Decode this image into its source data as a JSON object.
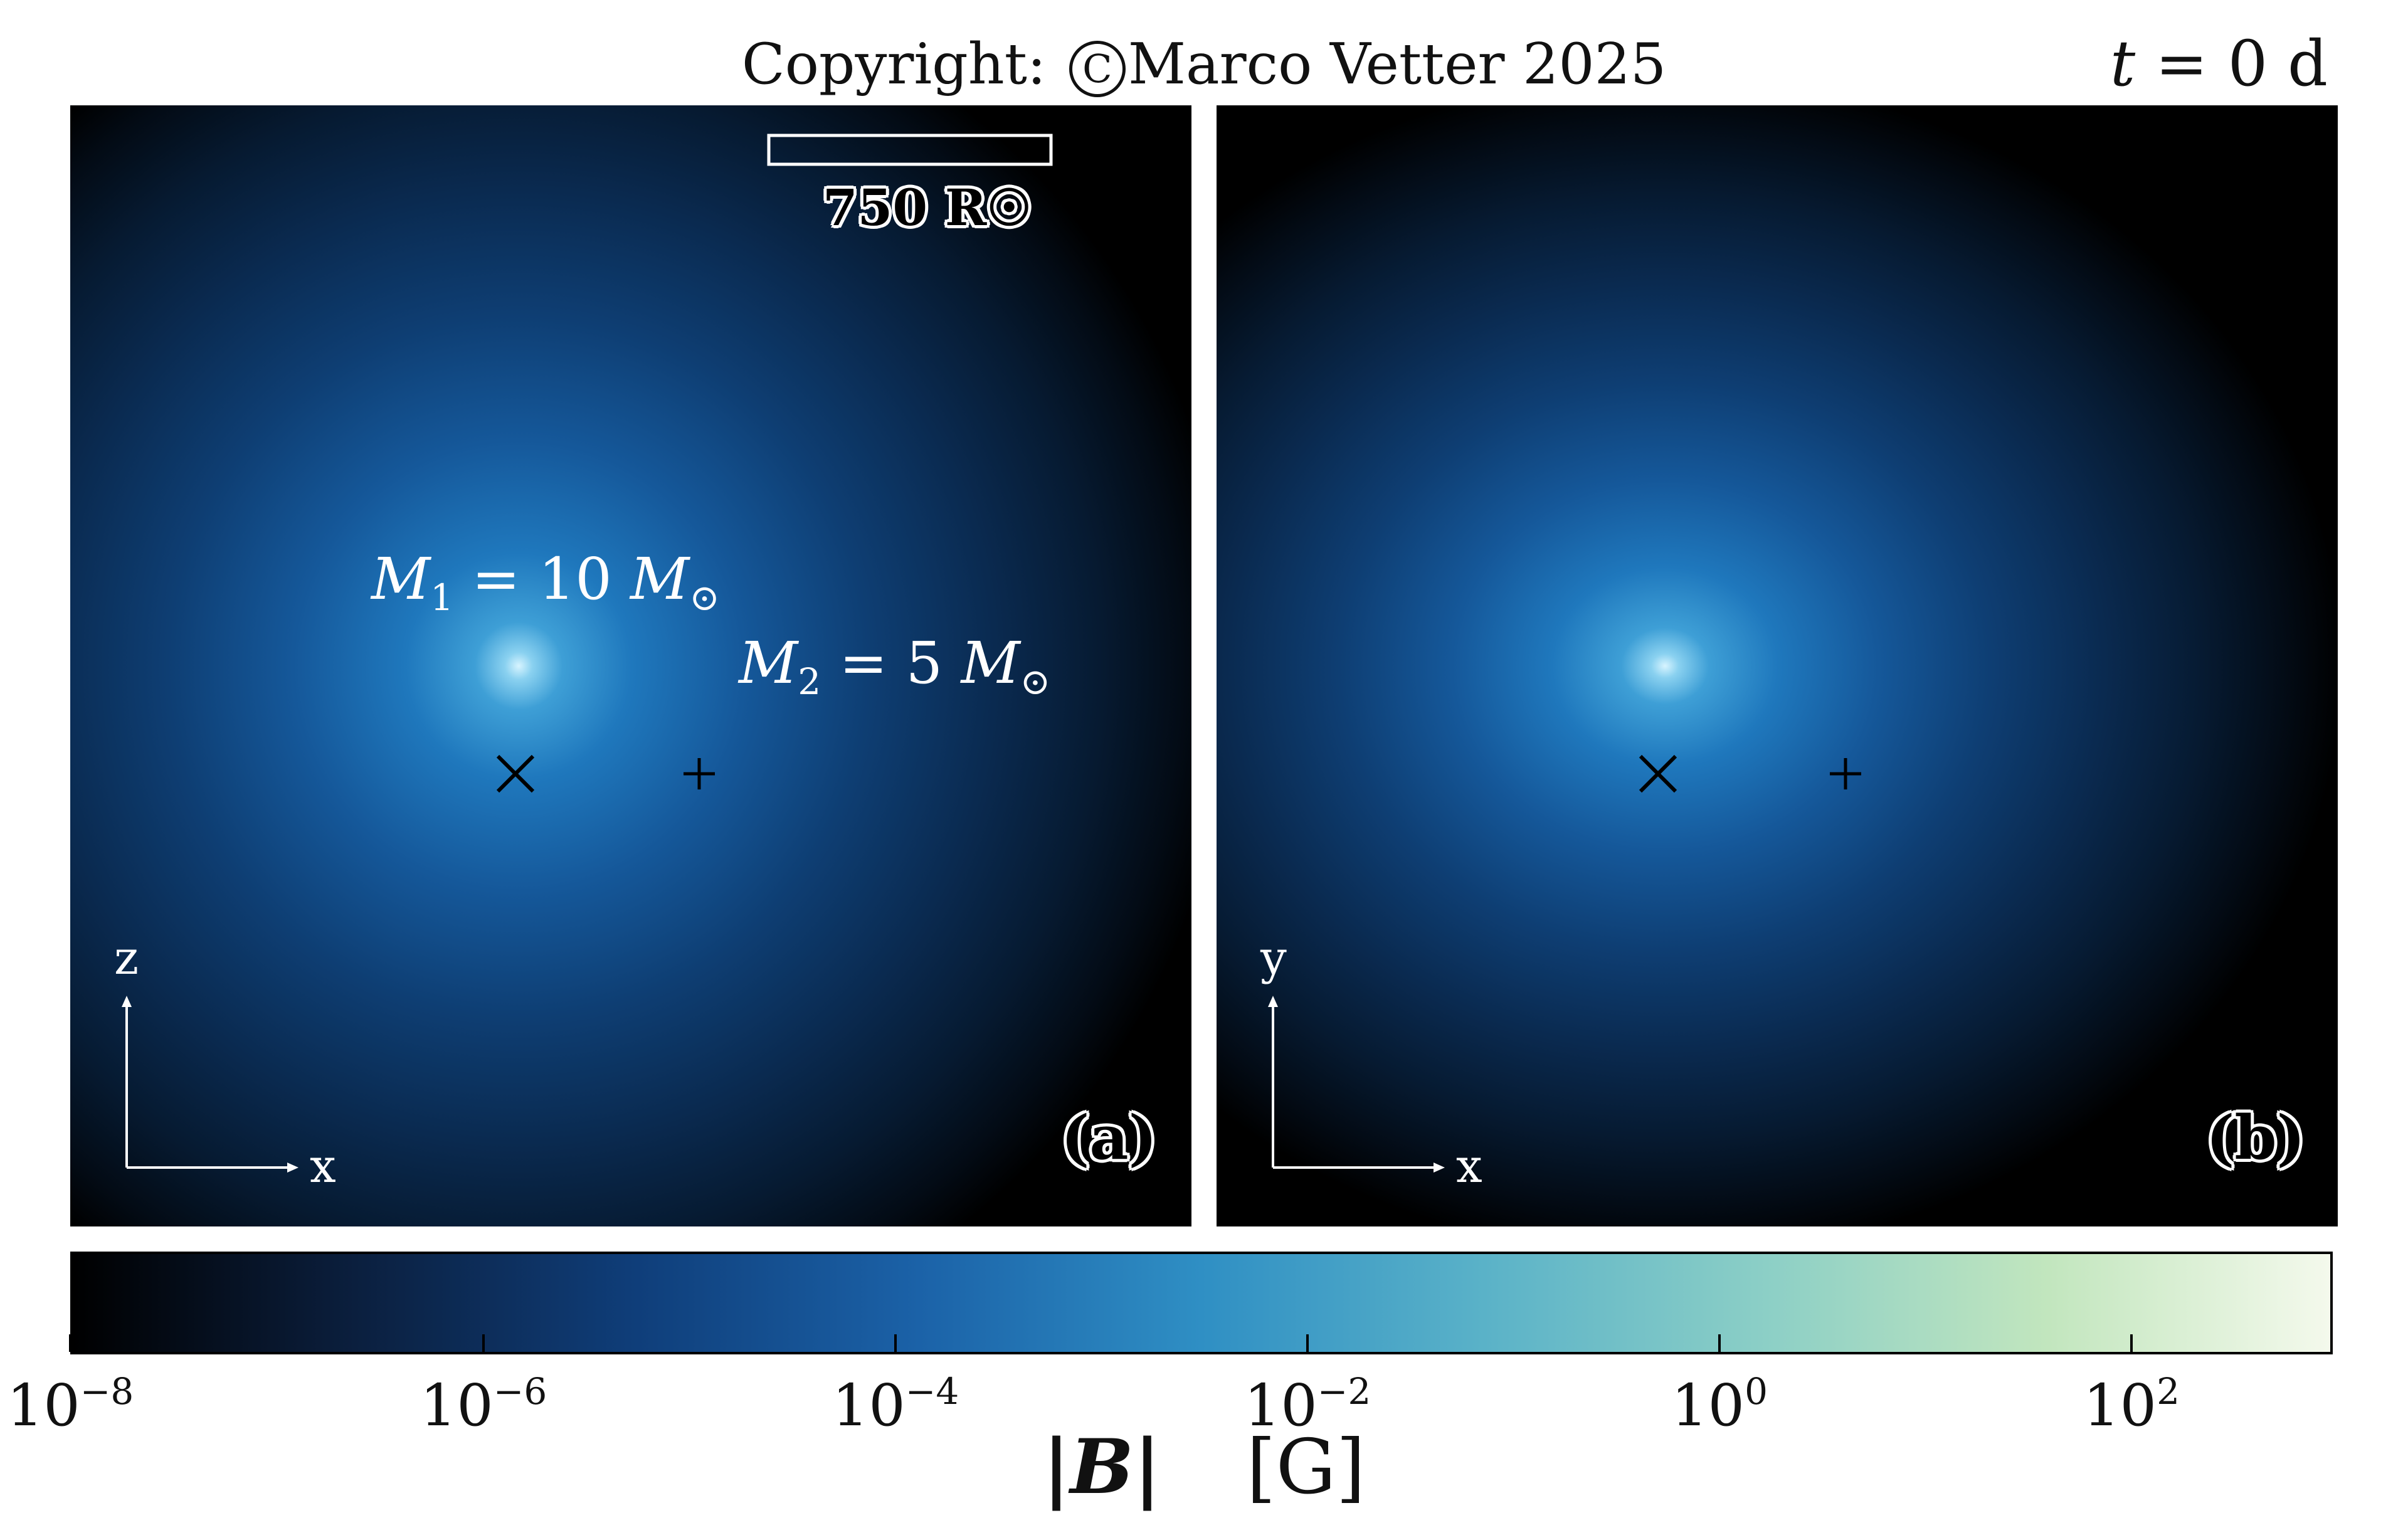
{
  "header": {
    "copyright_prefix": "Copyright:",
    "copyright_symbol": "C",
    "copyright_name": "Marco Vetter 2025",
    "time_var": "t",
    "time_value": "= 0 d"
  },
  "panel_a": {
    "tag": "(a)",
    "scale_bar_label": "750 R☉",
    "star1_label": {
      "sym": "M",
      "sub": "1",
      "rest": " = 10 ",
      "unit": "M",
      "unit_sub": "⊙"
    },
    "star2_label": {
      "sym": "M",
      "sub": "2",
      "rest": " = 5 ",
      "unit": "M",
      "unit_sub": "⊙"
    },
    "axis_vertical": "z",
    "axis_horizontal": "x"
  },
  "panel_b": {
    "tag": "(b)",
    "axis_vertical": "y",
    "axis_horizontal": "x"
  },
  "colorbar": {
    "colors": [
      "#000000",
      "#0b1f3e",
      "#0f3e7a",
      "#1b62a8",
      "#2f8fc4",
      "#5ab2c8",
      "#8ccfc6",
      "#c2e6be",
      "#f4f9ec"
    ],
    "tick_base": "10",
    "tick_exponents": [
      "−8",
      "−6",
      "−4",
      "−2",
      "0",
      "2"
    ],
    "label_quantity": "|B|",
    "label_symbol": "B",
    "label_unit": "[G]"
  }
}
